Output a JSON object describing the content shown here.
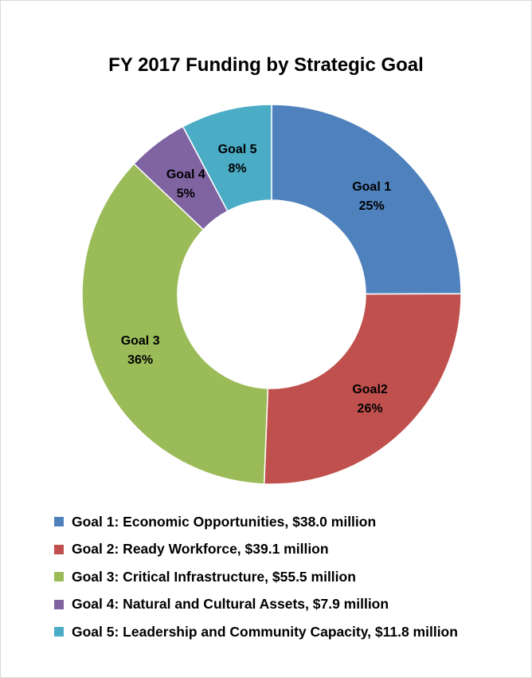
{
  "chart_data": {
    "type": "pie",
    "title": "FY 2017 Funding by Strategic Goal",
    "slices": [
      {
        "label": "Goal 1",
        "percent_label": "25%",
        "value": 38.0,
        "color": "#4f81bd",
        "legend": "Goal 1: Economic Opportunities, $38.0 million"
      },
      {
        "label": "Goal2",
        "percent_label": "26%",
        "value": 39.1,
        "color": "#c0504d",
        "legend": "Goal 2: Ready Workforce, $39.1 million"
      },
      {
        "label": "Goal 3",
        "percent_label": "36%",
        "value": 55.5,
        "color": "#9bbb59",
        "legend": "Goal 3: Critical Infrastructure, $55.5 million"
      },
      {
        "label": "Goal 4",
        "percent_label": "5%",
        "value": 7.9,
        "color": "#8064a2",
        "legend": "Goal 4: Natural and Cultural Assets, $7.9 million"
      },
      {
        "label": "Goal 5",
        "percent_label": "8%",
        "value": 11.8,
        "color": "#4bacc6",
        "legend": "Goal 5: Leadership and Community Capacity, $11.8 million"
      }
    ],
    "legend_position": "bottom"
  }
}
